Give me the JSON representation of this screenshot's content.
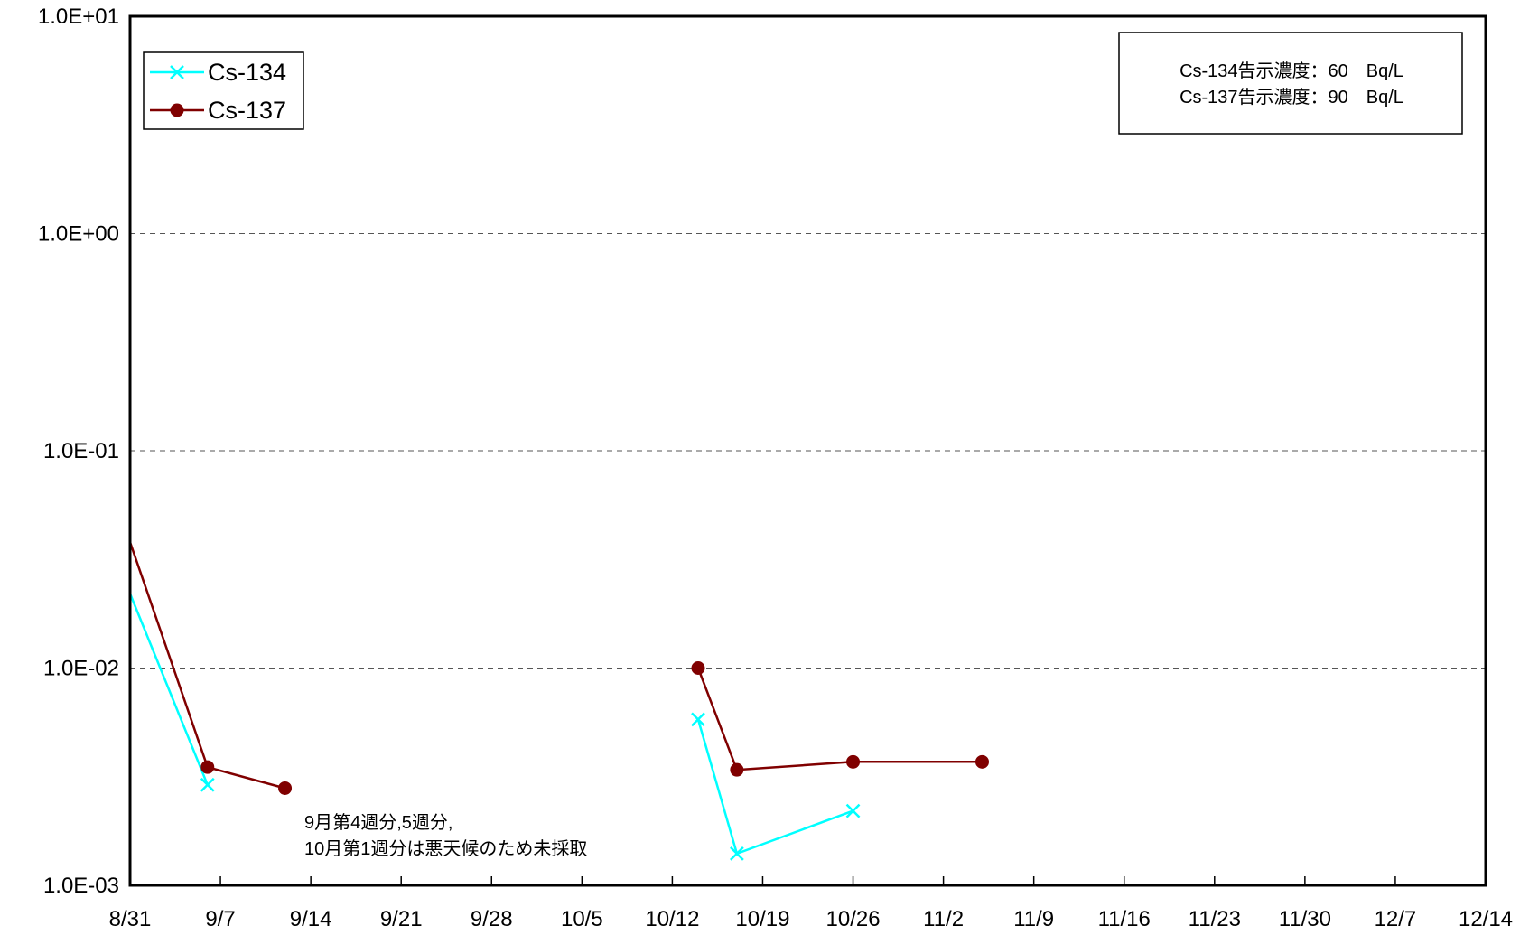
{
  "chart_data": {
    "type": "line",
    "y_scale": "log",
    "ylim": [
      0.001,
      10
    ],
    "y_tick_labels": [
      "1.0E-03",
      "1.0E-02",
      "1.0E-01",
      "1.0E+00",
      "1.0E+01"
    ],
    "y_tick_values": [
      0.001,
      0.01,
      0.1,
      1,
      10
    ],
    "x_range": [
      "8/31",
      "12/14"
    ],
    "x_tick_labels": [
      "8/31",
      "9/7",
      "9/14",
      "9/21",
      "9/28",
      "10/5",
      "10/12",
      "10/19",
      "10/26",
      "11/2",
      "11/9",
      "11/16",
      "11/23",
      "11/30",
      "12/7",
      "12/14"
    ],
    "grid": "horizontal dashed",
    "legend_placement": "top-left",
    "series": [
      {
        "name": "Cs-134",
        "color": "#00FFFF",
        "marker": "x",
        "segments": [
          [
            [
              "8/31",
              0.022
            ],
            [
              "9/6",
              0.0029
            ]
          ],
          [
            [
              "10/14",
              0.0058
            ],
            [
              "10/17",
              0.0014
            ],
            [
              "10/26",
              0.0022
            ]
          ]
        ]
      },
      {
        "name": "Cs-137",
        "color": "#800000",
        "marker": "circle",
        "segments": [
          [
            [
              "8/31",
              0.038
            ],
            [
              "9/6",
              0.0035
            ],
            [
              "9/12",
              0.0028
            ]
          ],
          [
            [
              "10/14",
              0.01
            ],
            [
              "10/17",
              0.0034
            ],
            [
              "10/26",
              0.0037
            ],
            [
              "11/5",
              0.0037
            ]
          ]
        ]
      }
    ],
    "annotations": {
      "limits_box": [
        "Cs-134告示濃度：60　Bq/L",
        "Cs-137告示濃度：90　Bq/L"
      ],
      "note": [
        "9月第4週分,5週分,",
        "10月第1週分は悪天候のため未採取"
      ]
    }
  }
}
